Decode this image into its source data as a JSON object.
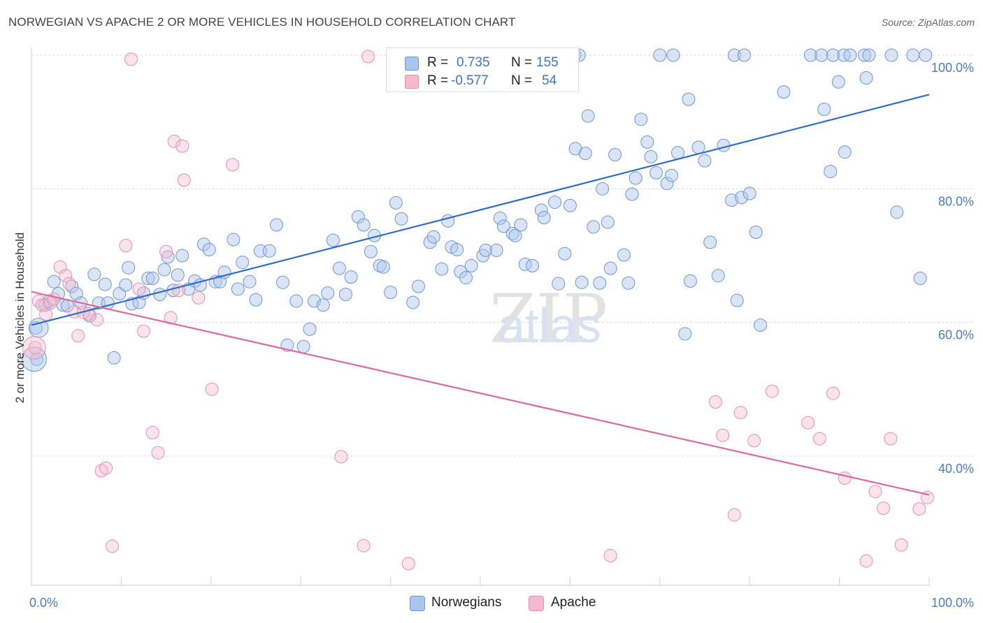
{
  "title": "NORWEGIAN VS APACHE 2 OR MORE VEHICLES IN HOUSEHOLD CORRELATION CHART",
  "source": "Source: ZipAtlas.com",
  "watermark": {
    "zip": "ZIP",
    "atlas": "atlas"
  },
  "legend": {
    "rows": [
      {
        "r_label": "R =",
        "r_value": "0.735",
        "n_label": "N =",
        "n_value": "155"
      },
      {
        "r_label": "R =",
        "r_value": "-0.577",
        "n_label": "N =",
        "n_value": "54"
      }
    ]
  },
  "bottom_legend": [
    "Norwegians",
    "Apache"
  ],
  "colors": {
    "norwegians": "#4a7cc9",
    "norwegians_fill": "#aac6ee",
    "apache": "#e06a95",
    "apache_fill": "#f5b8cc"
  },
  "chart_data": {
    "type": "scatter",
    "title": "NORWEGIAN VS APACHE 2 OR MORE VEHICLES IN HOUSEHOLD CORRELATION CHART",
    "xlabel": "",
    "ylabel": "2 or more Vehicles in Household",
    "xlim": [
      0,
      100
    ],
    "ylim": [
      20,
      100
    ],
    "x_tick_labels": [
      "0.0%",
      "100.0%"
    ],
    "y_tick_labels": [
      "100.0%",
      "80.0%",
      "60.0%",
      "40.0%"
    ],
    "y_ticks": [
      100,
      80,
      60,
      40
    ],
    "grid": true,
    "legend_position": "top-center",
    "series": [
      {
        "name": "Norwegians",
        "R": 0.735,
        "N": 155,
        "trend": [
          [
            0,
            59.6
          ],
          [
            100,
            94.1
          ]
        ],
        "points": [
          [
            0.5,
            59.2
          ],
          [
            0.6,
            54.5
          ],
          [
            1.5,
            62.6
          ],
          [
            2.0,
            63.2
          ],
          [
            2.5,
            66.1
          ],
          [
            3.0,
            64.3
          ],
          [
            3.5,
            62.6
          ],
          [
            4.0,
            62.5
          ],
          [
            4.5,
            65.4
          ],
          [
            5.0,
            64.3
          ],
          [
            5.5,
            62.9
          ],
          [
            6.5,
            61.0
          ],
          [
            7.0,
            67.2
          ],
          [
            7.5,
            62.9
          ],
          [
            8.2,
            65.7
          ],
          [
            8.5,
            62.9
          ],
          [
            9.2,
            54.7
          ],
          [
            9.8,
            64.3
          ],
          [
            10.5,
            65.6
          ],
          [
            10.8,
            68.2
          ],
          [
            11.2,
            62.8
          ],
          [
            12.0,
            63.0
          ],
          [
            12.5,
            64.4
          ],
          [
            13.0,
            66.6
          ],
          [
            13.5,
            66.6
          ],
          [
            14.3,
            64.2
          ],
          [
            14.8,
            67.9
          ],
          [
            15.2,
            69.8
          ],
          [
            15.8,
            64.8
          ],
          [
            16.3,
            67.1
          ],
          [
            16.8,
            70.0
          ],
          [
            17.5,
            65.0
          ],
          [
            18.2,
            66.2
          ],
          [
            18.8,
            65.6
          ],
          [
            19.2,
            71.7
          ],
          [
            19.8,
            70.9
          ],
          [
            20.5,
            66.1
          ],
          [
            21.0,
            66.1
          ],
          [
            21.5,
            67.5
          ],
          [
            22.5,
            72.4
          ],
          [
            23.0,
            65.0
          ],
          [
            23.5,
            69.0
          ],
          [
            24.3,
            66.1
          ],
          [
            25.0,
            63.4
          ],
          [
            25.5,
            70.7
          ],
          [
            26.5,
            70.7
          ],
          [
            27.3,
            74.6
          ],
          [
            28.0,
            66.0
          ],
          [
            28.5,
            56.6
          ],
          [
            29.5,
            63.2
          ],
          [
            30.3,
            56.4
          ],
          [
            31.0,
            59.0
          ],
          [
            31.5,
            63.2
          ],
          [
            32.5,
            62.6
          ],
          [
            33.0,
            64.4
          ],
          [
            33.6,
            72.3
          ],
          [
            34.3,
            68.1
          ],
          [
            35.0,
            64.2
          ],
          [
            35.6,
            66.8
          ],
          [
            36.4,
            75.8
          ],
          [
            37.0,
            74.6
          ],
          [
            37.8,
            70.6
          ],
          [
            38.2,
            73.0
          ],
          [
            38.8,
            68.5
          ],
          [
            39.2,
            68.3
          ],
          [
            40.0,
            64.5
          ],
          [
            40.6,
            77.9
          ],
          [
            41.2,
            75.5
          ],
          [
            42.5,
            63.0
          ],
          [
            43.1,
            65.4
          ],
          [
            44.4,
            72.0
          ],
          [
            44.8,
            72.8
          ],
          [
            45.7,
            68.0
          ],
          [
            46.4,
            75.2
          ],
          [
            46.8,
            71.3
          ],
          [
            47.4,
            70.9
          ],
          [
            47.8,
            67.6
          ],
          [
            48.4,
            66.7
          ],
          [
            49.0,
            68.5
          ],
          [
            50.3,
            70.0
          ],
          [
            50.6,
            70.8
          ],
          [
            51.8,
            70.8
          ],
          [
            52.2,
            75.6
          ],
          [
            52.6,
            74.4
          ],
          [
            53.6,
            73.3
          ],
          [
            53.9,
            73.0
          ],
          [
            54.5,
            74.6
          ],
          [
            55.0,
            68.7
          ],
          [
            55.8,
            68.5
          ],
          [
            56.8,
            76.8
          ],
          [
            57.1,
            75.7
          ],
          [
            58.3,
            78.0
          ],
          [
            58.7,
            65.8
          ],
          [
            59.4,
            70.3
          ],
          [
            60.0,
            77.5
          ],
          [
            60.6,
            86.0
          ],
          [
            61.3,
            66.0
          ],
          [
            61.7,
            85.3
          ],
          [
            62.0,
            90.9
          ],
          [
            62.6,
            74.3
          ],
          [
            63.3,
            65.9
          ],
          [
            63.6,
            80.0
          ],
          [
            64.2,
            75.0
          ],
          [
            64.5,
            68.1
          ],
          [
            65.0,
            85.1
          ],
          [
            66.0,
            70.1
          ],
          [
            66.5,
            65.9
          ],
          [
            66.9,
            79.2
          ],
          [
            67.3,
            81.6
          ],
          [
            67.9,
            90.4
          ],
          [
            68.6,
            87.0
          ],
          [
            69.0,
            84.8
          ],
          [
            69.6,
            82.4
          ],
          [
            70.8,
            80.8
          ],
          [
            71.3,
            82.0
          ],
          [
            72.0,
            85.4
          ],
          [
            72.8,
            58.3
          ],
          [
            73.2,
            93.4
          ],
          [
            73.4,
            66.2
          ],
          [
            74.3,
            86.2
          ],
          [
            75.0,
            84.2
          ],
          [
            75.6,
            72.0
          ],
          [
            76.5,
            67.0
          ],
          [
            77.1,
            86.5
          ],
          [
            78.0,
            78.3
          ],
          [
            78.6,
            63.3
          ],
          [
            79.1,
            78.7
          ],
          [
            80.0,
            79.3
          ],
          [
            80.7,
            73.5
          ],
          [
            81.2,
            59.6
          ],
          [
            83.8,
            94.5
          ],
          [
            88.3,
            91.9
          ],
          [
            89.0,
            82.6
          ],
          [
            89.9,
            96.0
          ],
          [
            90.6,
            85.5
          ],
          [
            93.0,
            96.6
          ],
          [
            96.4,
            76.5
          ],
          [
            99.0,
            66.6
          ],
          [
            60.5,
            100.0
          ],
          [
            61.0,
            100.0
          ],
          [
            70.0,
            100.0
          ],
          [
            71.5,
            100.0
          ],
          [
            78.3,
            100.0
          ],
          [
            79.4,
            100.0
          ],
          [
            86.8,
            100.0
          ],
          [
            88.0,
            100.0
          ],
          [
            89.3,
            100.0
          ],
          [
            90.5,
            100.0
          ],
          [
            91.2,
            100.0
          ],
          [
            92.8,
            100.0
          ],
          [
            93.3,
            100.0
          ],
          [
            95.8,
            100.0
          ],
          [
            98.2,
            100.0
          ],
          [
            99.6,
            100.0
          ]
        ],
        "big_points": [
          [
            0.3,
            54.5,
            14
          ],
          [
            0.8,
            59.2,
            11
          ]
        ]
      },
      {
        "name": "Apache",
        "R": -0.577,
        "N": 54,
        "trend": [
          [
            0,
            64.6
          ],
          [
            100,
            34.2
          ]
        ],
        "points": [
          [
            0.4,
            56.2
          ],
          [
            0.8,
            63.2
          ],
          [
            1.2,
            62.6
          ],
          [
            1.6,
            61.2
          ],
          [
            2.1,
            62.9
          ],
          [
            2.5,
            63.5
          ],
          [
            3.2,
            68.3
          ],
          [
            3.8,
            67.0
          ],
          [
            4.2,
            65.8
          ],
          [
            4.8,
            61.6
          ],
          [
            5.2,
            58.0
          ],
          [
            5.8,
            61.5
          ],
          [
            6.4,
            61.3
          ],
          [
            7.3,
            60.4
          ],
          [
            7.8,
            37.8
          ],
          [
            8.3,
            38.2
          ],
          [
            9.0,
            26.5
          ],
          [
            11.1,
            99.4
          ],
          [
            10.5,
            71.5
          ],
          [
            12.0,
            65.0
          ],
          [
            12.5,
            58.7
          ],
          [
            13.5,
            43.5
          ],
          [
            14.1,
            40.5
          ],
          [
            15.0,
            70.6
          ],
          [
            15.5,
            60.7
          ],
          [
            15.9,
            87.1
          ],
          [
            16.4,
            64.8
          ],
          [
            16.8,
            86.4
          ],
          [
            17.0,
            81.3
          ],
          [
            18.6,
            63.7
          ],
          [
            20.1,
            50.0
          ],
          [
            22.4,
            83.6
          ],
          [
            34.5,
            39.9
          ],
          [
            37.0,
            26.6
          ],
          [
            37.5,
            99.8
          ],
          [
            42.0,
            23.9
          ],
          [
            64.5,
            25.1
          ],
          [
            76.2,
            48.1
          ],
          [
            77.0,
            43.1
          ],
          [
            78.3,
            31.2
          ],
          [
            79.0,
            46.5
          ],
          [
            80.5,
            42.3
          ],
          [
            82.5,
            49.7
          ],
          [
            86.5,
            45.0
          ],
          [
            87.8,
            42.6
          ],
          [
            89.3,
            49.4
          ],
          [
            90.6,
            36.7
          ],
          [
            93.0,
            24.3
          ],
          [
            94.0,
            34.7
          ],
          [
            94.9,
            32.2
          ],
          [
            95.7,
            42.6
          ],
          [
            96.9,
            26.7
          ],
          [
            98.9,
            32.1
          ],
          [
            99.8,
            33.8
          ]
        ],
        "big_points": [
          [
            0.3,
            56.2,
            13
          ]
        ]
      }
    ]
  }
}
